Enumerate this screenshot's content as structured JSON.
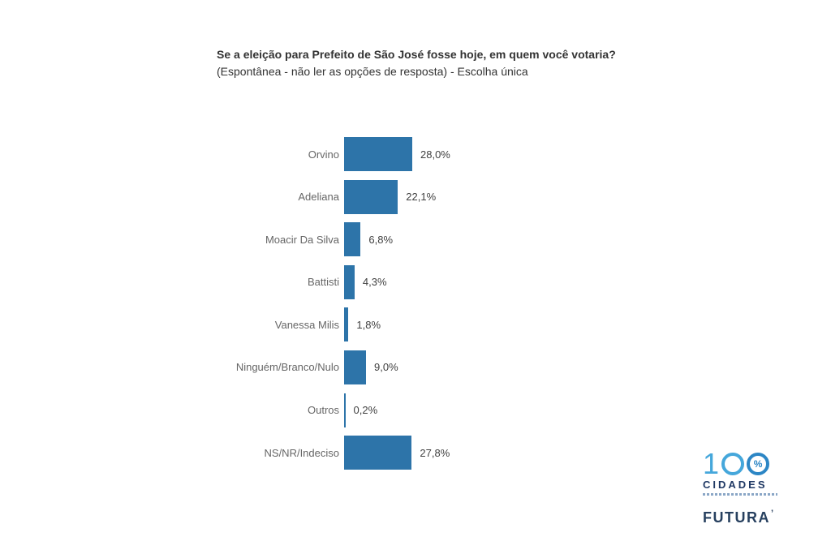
{
  "header": {
    "title": "Se a eleição para Prefeito de São José fosse hoje, em quem você votaria?",
    "subtitle": "(Espontânea - não ler as opções de resposta) - Escolha única"
  },
  "chart_data": {
    "type": "bar",
    "orientation": "horizontal",
    "title": "Se a eleição para Prefeito de São José fosse hoje, em quem você votaria?",
    "subtitle": "(Espontânea - não ler as opções de resposta) - Escolha única",
    "categories": [
      "Orvino",
      "Adeliana",
      "Moacir Da Silva",
      "Battisti",
      "Vanessa Milis",
      "Ninguém/Branco/Nulo",
      "Outros",
      "NS/NR/Indeciso"
    ],
    "values": [
      28.0,
      22.1,
      6.8,
      4.3,
      1.8,
      9.0,
      0.2,
      27.8
    ],
    "value_labels": [
      "28,0%",
      "22,1%",
      "6,8%",
      "4,3%",
      "1,8%",
      "9,0%",
      "0,2%",
      "27,8%"
    ],
    "xlabel": "",
    "ylabel": "",
    "xlim": [
      0,
      30
    ],
    "grid": false,
    "legend": false,
    "data_labels_position": "outside-end",
    "bar_color": "#2D74A9",
    "category_label_color": "#666666",
    "value_label_color": "#404040"
  },
  "branding": {
    "logo_number": "1",
    "logo_percent": "%",
    "cidades_wordmark": "CIDADES",
    "futura_wordmark": "FUTURA",
    "futura_mark": "’",
    "light_blue": "#45A7DB",
    "mid_blue": "#2C86C5",
    "navy": "#1F3864"
  }
}
